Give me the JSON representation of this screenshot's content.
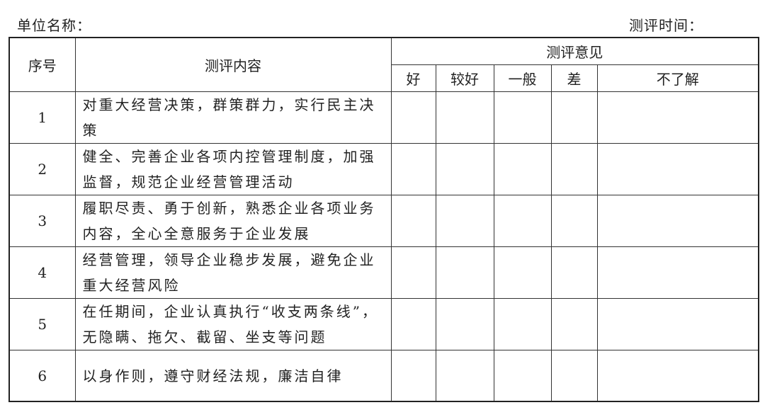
{
  "unit_label": "单位名称：",
  "time_label": "测评时间：",
  "table": {
    "headers": {
      "index": "序号",
      "content": "测评内容",
      "opinion": "测评意见",
      "ratings": [
        "好",
        "较好",
        "一般",
        "差",
        "不了解"
      ]
    },
    "rows": [
      {
        "index": "1",
        "content": "对重大经营决策，群策群力，实行民主决策"
      },
      {
        "index": "2",
        "content": "健全、完善企业各项内控管理制度，加强监督，规范企业经营管理活动"
      },
      {
        "index": "3",
        "content": "履职尽责、勇于创新，熟悉企业各项业务内容，全心全意服务于企业发展"
      },
      {
        "index": "4",
        "content": "经营管理，领导企业稳步发展，避免企业重大经营风险"
      },
      {
        "index": "5",
        "content": "在任期间，企业认真执行“收支两条线”，无隐瞒、拖欠、截留、坐支等问题"
      },
      {
        "index": "6",
        "content": "以身作则，遵守财经法规，廉洁自律"
      }
    ]
  }
}
